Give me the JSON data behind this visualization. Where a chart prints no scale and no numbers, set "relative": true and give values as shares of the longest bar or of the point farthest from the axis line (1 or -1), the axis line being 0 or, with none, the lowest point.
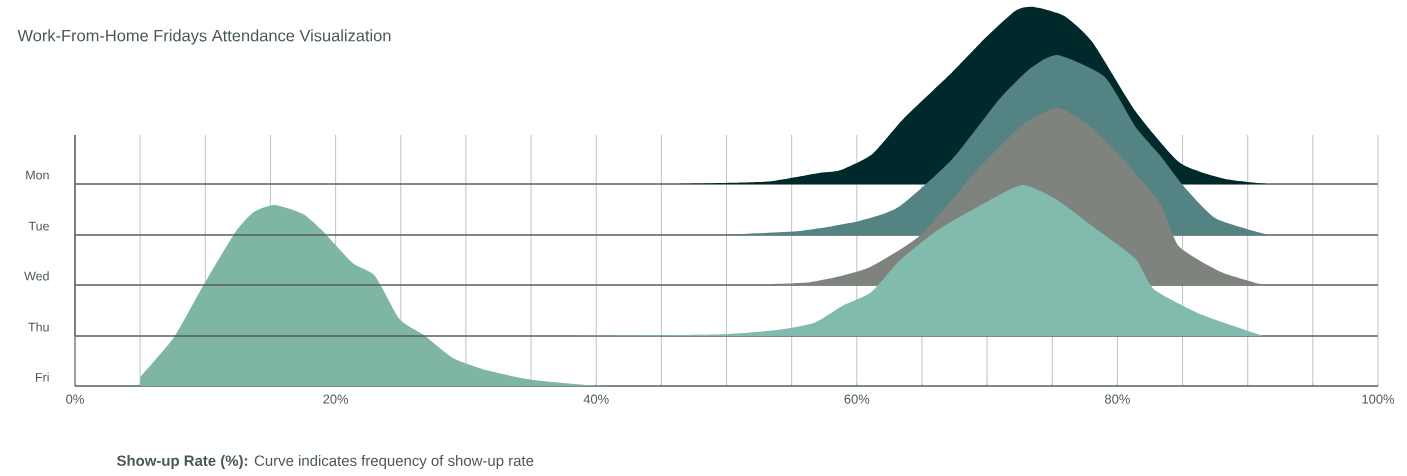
{
  "chart_data": [
    {
      "type": "area",
      "relative": true,
      "title": "Work-From-Home Fridays Attendance Visualization",
      "ylabel": "Mon",
      "color": "#00292b",
      "xlim": [
        0,
        100
      ],
      "tick_labels": false,
      "x": [
        46.4,
        49.5,
        53.2,
        56.9,
        58.7,
        61.2,
        63.6,
        67.3,
        69.8,
        72.2,
        73.6,
        75.9,
        78.1,
        81.4,
        84.8,
        88.2,
        91.6
      ],
      "values": [
        0,
        0.005,
        0.014,
        0.06,
        0.077,
        0.17,
        0.37,
        0.63,
        0.82,
        0.98,
        1.0,
        0.95,
        0.8,
        0.41,
        0.12,
        0.03,
        0
      ]
    },
    {
      "type": "area",
      "relative": true,
      "ylabel": "Tue",
      "color": "#548383",
      "xlim": [
        0,
        100
      ],
      "tick_labels": false,
      "x": [
        49.5,
        55.6,
        60.2,
        63.2,
        67.3,
        71.0,
        73.4,
        75.4,
        79.0,
        81.4,
        83.3,
        85.1,
        87.6,
        91.6
      ],
      "values": [
        0,
        0.022,
        0.078,
        0.155,
        0.42,
        0.76,
        0.93,
        1.0,
        0.88,
        0.6,
        0.44,
        0.27,
        0.09,
        0
      ]
    },
    {
      "type": "area",
      "relative": true,
      "ylabel": "Wed",
      "color": "#7f837e",
      "xlim": [
        0,
        100
      ],
      "tick_labels": false,
      "x": [
        49.9,
        56.4,
        60.8,
        64.7,
        67.3,
        69.1,
        72.8,
        75.4,
        77.7,
        80.2,
        83.3,
        84.7,
        87.9,
        91.2
      ],
      "values": [
        0,
        0.016,
        0.094,
        0.27,
        0.48,
        0.64,
        0.91,
        1.0,
        0.91,
        0.73,
        0.46,
        0.22,
        0.075,
        0
      ]
    },
    {
      "type": "area",
      "relative": true,
      "ylabel": "Thu",
      "color": "#81bbad",
      "xlim": [
        0,
        100
      ],
      "tick_labels": false,
      "x": [
        37.2,
        49.2,
        53.9,
        56.8,
        58.9,
        61.1,
        63.3,
        66.2,
        69.8,
        72.7,
        75.2,
        78.5,
        81.4,
        82.8,
        86.5,
        91.2
      ],
      "values": [
        0,
        0.01,
        0.04,
        0.09,
        0.2,
        0.29,
        0.5,
        0.7,
        0.88,
        1.0,
        0.91,
        0.7,
        0.51,
        0.31,
        0.14,
        0
      ]
    },
    {
      "type": "area",
      "relative": true,
      "ylabel": "Fri",
      "xlabel": "**Show-up Rate (%):** Curve indicates frequency of show-up rate",
      "color": "#7fb5a3",
      "xlim": [
        0,
        100
      ],
      "grid": "x",
      "tick_labels": "x",
      "xticks": [
        {
          "value": 0,
          "label": "0%"
        },
        {
          "value": 5,
          "label": null
        },
        {
          "value": 10,
          "label": null
        },
        {
          "value": 15,
          "label": null
        },
        {
          "value": 20,
          "label": "20%"
        },
        {
          "value": 25,
          "label": null
        },
        {
          "value": 30,
          "label": null
        },
        {
          "value": 35,
          "label": null
        },
        {
          "value": 40,
          "label": "40%"
        },
        {
          "value": 45,
          "label": null
        },
        {
          "value": 50,
          "label": null
        },
        {
          "value": 55,
          "label": null
        },
        {
          "value": 60,
          "label": "60%"
        },
        {
          "value": 65,
          "label": null
        },
        {
          "value": 70,
          "label": null
        },
        {
          "value": 75,
          "label": null
        },
        {
          "value": 80,
          "label": "80%"
        },
        {
          "value": 85,
          "label": null
        },
        {
          "value": 90,
          "label": null
        },
        {
          "value": 95,
          "label": null
        },
        {
          "value": 100,
          "label": "100%"
        }
      ],
      "x": [
        5.0,
        7.6,
        9.8,
        12.3,
        13.7,
        15.3,
        17.5,
        19.1,
        21.3,
        23.0,
        24.9,
        26.8,
        29.0,
        31.7,
        35.0,
        39.4,
        41.0
      ],
      "values": [
        0.05,
        0.27,
        0.55,
        0.85,
        0.96,
        1.0,
        0.95,
        0.85,
        0.68,
        0.61,
        0.37,
        0.28,
        0.155,
        0.085,
        0.035,
        0.005,
        0
      ]
    }
  ]
}
